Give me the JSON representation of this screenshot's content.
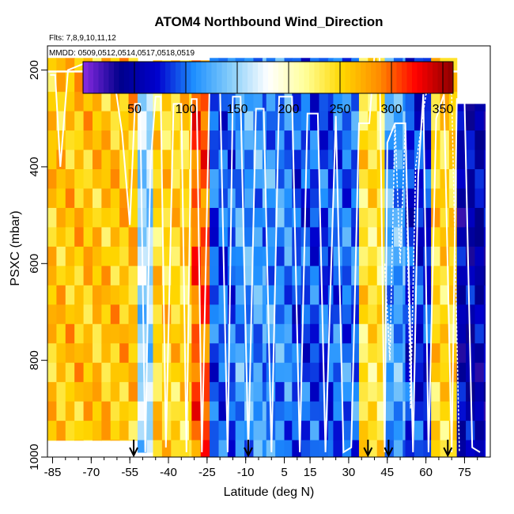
{
  "chart_data": {
    "type": "heatmap",
    "title": "ATOM4 Northbound Wind_Direction",
    "flights_text": "Flts: 7,8,9,10,11,12",
    "dates_text": "MMDD: 0509,0512,0514,0517,0518,0519",
    "xlabel": "Latitude (deg N)",
    "ylabel": "PSXC (mbar)",
    "xlim": [
      -87,
      85
    ],
    "ylim": [
      1000,
      150
    ],
    "x_ticks": [
      -85,
      -70,
      -55,
      -40,
      -25,
      -10,
      5,
      15,
      30,
      45,
      60,
      75
    ],
    "x_tick_labels": [
      "-85",
      "-70",
      "-55",
      "-40",
      "-25",
      "-10",
      "5",
      "15",
      "30",
      "45",
      "60",
      "75"
    ],
    "y_ticks": [
      200,
      400,
      600,
      800,
      1000
    ],
    "y_tick_labels": [
      "200",
      "400",
      "600",
      "800",
      "1000"
    ],
    "colorbar": {
      "range": [
        0,
        360
      ],
      "ticks": [
        50,
        100,
        150,
        200,
        250,
        300,
        350
      ],
      "tick_labels": [
        "50",
        "100",
        "150",
        "200",
        "250",
        "300",
        "350"
      ],
      "colors": [
        "#8b2be2",
        "#00008b",
        "#0000cd",
        "#1e90ff",
        "#87cefa",
        "#ffffff",
        "#ffff99",
        "#ffd700",
        "#ff8c00",
        "#ff0000",
        "#8b0000"
      ]
    },
    "layers_mbar": [
      180,
      225,
      265,
      305,
      345,
      385,
      425,
      465,
      505,
      545,
      585,
      625,
      665,
      705,
      745,
      785,
      825,
      865,
      905,
      945,
      985
    ],
    "column_width_deg": 3.5,
    "sections": [
      {
        "lat0": -87,
        "lat1": -52,
        "p_top": 175,
        "p_bot": 965,
        "wind_dir": 260
      },
      {
        "lat0": -52,
        "lat1": -46,
        "p_top": 185,
        "p_bot": 990,
        "wind_dir": 150
      },
      {
        "lat0": -46,
        "lat1": -31,
        "p_top": 180,
        "p_bot": 1000,
        "wind_dir": 250
      },
      {
        "lat0": -31,
        "lat1": -24,
        "p_top": 180,
        "p_bot": 1000,
        "wind_dir": 300
      },
      {
        "lat0": -24,
        "lat1": -14,
        "p_top": 175,
        "p_bot": 1000,
        "wind_dir": 95
      },
      {
        "lat0": -14,
        "lat1": -2,
        "p_top": 175,
        "p_bot": 1000,
        "wind_dir": 115
      },
      {
        "lat0": -2,
        "lat1": 8,
        "p_top": 175,
        "p_bot": 1000,
        "wind_dir": 110
      },
      {
        "lat0": 8,
        "lat1": 24,
        "p_top": 175,
        "p_bot": 1000,
        "wind_dir": 90
      },
      {
        "lat0": 24,
        "lat1": 34,
        "p_top": 175,
        "p_bot": 1000,
        "wind_dir": 100
      },
      {
        "lat0": 34,
        "lat1": 44,
        "p_top": 175,
        "p_bot": 1000,
        "wind_dir": 240
      },
      {
        "lat0": 44,
        "lat1": 52,
        "p_top": 175,
        "p_bot": 1000,
        "wind_dir": 120
      },
      {
        "lat0": 52,
        "lat1": 62,
        "p_top": 175,
        "p_bot": 1000,
        "wind_dir": 80
      },
      {
        "lat0": 62,
        "lat1": 72,
        "p_top": 175,
        "p_bot": 1000,
        "wind_dir": 250
      },
      {
        "lat0": 72,
        "lat1": 83,
        "p_top": 270,
        "p_bot": 1000,
        "wind_dir": 55
      }
    ],
    "flight_track_segments": [
      [
        [
          -86,
          210
        ],
        [
          -84,
          210
        ],
        [
          -82,
          400
        ],
        [
          -79,
          200
        ],
        [
          -72,
          185
        ],
        [
          -62,
          185
        ],
        [
          -58,
          330
        ],
        [
          -55,
          520
        ],
        [
          -53,
          270
        ],
        [
          -51,
          270
        ],
        [
          -49,
          990
        ],
        [
          -47,
          400
        ],
        [
          -45,
          255
        ],
        [
          -43,
          255
        ],
        [
          -41,
          980
        ],
        [
          -38,
          270
        ],
        [
          -35,
          270
        ],
        [
          -33,
          990
        ],
        [
          -31,
          260
        ],
        [
          -29,
          260
        ],
        [
          -27,
          990
        ],
        [
          -24,
          225
        ],
        [
          -20,
          225
        ],
        [
          -17,
          990
        ],
        [
          -15,
          255
        ],
        [
          -12,
          255
        ],
        [
          -9,
          990
        ],
        [
          -6,
          280
        ],
        [
          -3,
          280
        ],
        [
          0,
          990
        ],
        [
          3,
          255
        ],
        [
          8,
          255
        ],
        [
          11,
          990
        ],
        [
          14,
          290
        ],
        [
          18,
          290
        ],
        [
          21,
          990
        ],
        [
          25,
          295
        ],
        [
          28,
          990
        ],
        [
          31,
          980
        ],
        [
          34,
          310
        ],
        [
          38,
          310
        ],
        [
          40,
          170
        ],
        [
          42,
          170
        ]
      ],
      [
        [
          42,
          170
        ],
        [
          44,
          990
        ],
        [
          45,
          350
        ],
        [
          48,
          310
        ],
        [
          52,
          310
        ],
        [
          55,
          990
        ],
        [
          57,
          420
        ],
        [
          59,
          250
        ],
        [
          61,
          990
        ],
        [
          64,
          300
        ],
        [
          67,
          250
        ],
        [
          70,
          990
        ],
        [
          72,
          260
        ],
        [
          75,
          260
        ],
        [
          78,
          980
        ],
        [
          81,
          990
        ]
      ],
      [
        [
          44,
          600
        ],
        [
          46,
          800
        ],
        [
          48,
          310
        ],
        [
          50,
          600
        ],
        [
          52,
          310
        ],
        [
          54,
          900
        ],
        [
          56,
          400
        ],
        [
          60,
          250
        ],
        [
          66,
          240
        ],
        [
          70,
          250
        ],
        [
          73,
          990
        ]
      ]
    ],
    "takeoff_markers_lat": [
      -53.5,
      -9.0,
      37.5,
      45.5,
      68.5
    ]
  }
}
